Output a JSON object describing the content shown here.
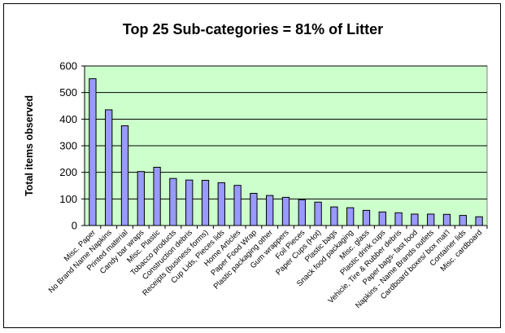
{
  "chart_data": {
    "type": "bar",
    "title": "Top 25 Sub-categories = 81% of Litter",
    "xlabel": "",
    "ylabel": "Total items observed",
    "ylim": [
      0,
      600
    ],
    "yticks": [
      0,
      100,
      200,
      300,
      400,
      500,
      600
    ],
    "grid": true,
    "legend": "none",
    "colors": {
      "plot_background": "#ccffcc",
      "bar_fill": "#9999ff",
      "bar_stroke": "#000000",
      "gridline": "#000000"
    },
    "categories": [
      "Misc. Paper",
      "No Brand Name Napkins",
      "Printed material",
      "Candy bar wraps",
      "Misc. Plastic",
      "Tobacco products",
      "Construction debris",
      "Receipts (business forms)",
      "Cup Lids, Pieces lids",
      "Home Articles",
      "Paper Food Wrap",
      "Plastic packaging other",
      "Gum wrappers",
      "Foil Pieces",
      "Paper Cups (Hot)",
      "Plastic bags",
      "Snack food packaging",
      "Misc. glass",
      "Plastic drink cups",
      "Vehicle, Tire & Rubber debris",
      "Paper bags- fast food",
      "Napkins - Name Brands outlets",
      "Cardboard boxes/ box mat'l",
      "Container lids",
      "Misc. cardboard"
    ],
    "values": [
      552,
      435,
      375,
      203,
      219,
      177,
      171,
      170,
      161,
      151,
      121,
      113,
      106,
      97,
      88,
      70,
      67,
      57,
      51,
      48,
      43,
      43,
      42,
      38,
      33
    ]
  }
}
